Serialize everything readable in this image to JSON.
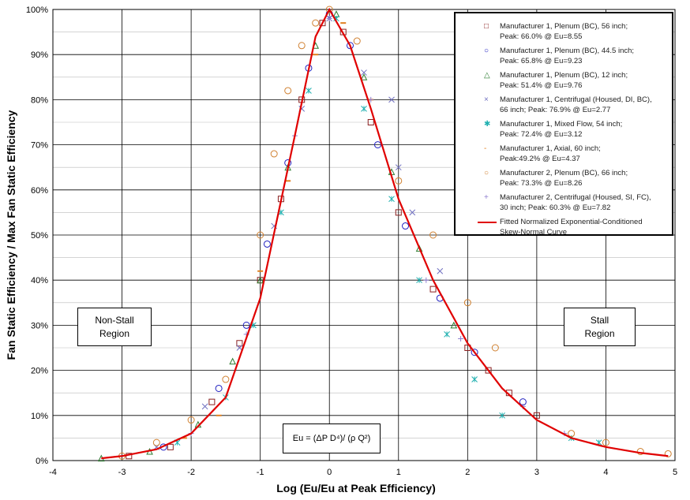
{
  "chart_data": {
    "type": "scatter",
    "xlabel": "Log (Eu/Eu at Peak Efficiency)",
    "ylabel": "Fan Static Efficiency / Max Fan Static Efficiency",
    "xlim": [
      -4,
      5
    ],
    "ylim": [
      0,
      100
    ],
    "xticks": [
      "-4",
      "-3",
      "-2",
      "-1",
      "0",
      "1",
      "2",
      "3",
      "4",
      "5"
    ],
    "yticks": [
      "0%",
      "10%",
      "20%",
      "30%",
      "40%",
      "50%",
      "60%",
      "70%",
      "80%",
      "90%",
      "100%"
    ],
    "grid": true,
    "legend_position": "top-right",
    "annotations": {
      "non_stall": [
        "Non-Stall",
        "Region"
      ],
      "stall": [
        "Stall",
        "Region"
      ],
      "eu_formula": "Eu = (ΔP D⁴)/ (ρ Q²)"
    },
    "series": [
      {
        "name": "Manufacturer 1, Plenum (BC), 56 inch; Peak: 66.0% @ Eu=8.55",
        "marker": "square",
        "color": "#8B2020",
        "x": [
          -2.9,
          -2.3,
          -1.7,
          -1.3,
          -1.0,
          -0.7,
          -0.4,
          -0.1,
          0.2,
          0.6,
          1.0,
          1.5,
          2.0,
          2.3,
          2.6,
          3.0
        ],
        "y": [
          1,
          3,
          13,
          26,
          40,
          58,
          80,
          97,
          95,
          75,
          55,
          38,
          25,
          20,
          15,
          10
        ]
      },
      {
        "name": "Manufacturer 1, Plenum (BC), 44.5 inch; Peak: 65.8% @ Eu=9.23",
        "marker": "circle",
        "color": "#2020C0",
        "x": [
          -2.4,
          -1.6,
          -1.2,
          -0.9,
          -0.6,
          -0.3,
          0.0,
          0.3,
          0.7,
          1.1,
          1.6,
          2.1,
          2.8
        ],
        "y": [
          3,
          16,
          30,
          48,
          66,
          87,
          99,
          92,
          70,
          52,
          36,
          24,
          13
        ]
      },
      {
        "name": "Manufacturer 1, Plenum (BC), 12 inch; Peak: 51.4% @ Eu=9.76",
        "marker": "triangle",
        "color": "#2E7D32",
        "x": [
          -3.3,
          -2.6,
          -1.9,
          -1.4,
          -1.0,
          -0.6,
          -0.2,
          0.1,
          0.5,
          0.9,
          1.3,
          1.8
        ],
        "y": [
          0.5,
          2,
          8,
          22,
          40,
          65,
          92,
          99,
          85,
          64,
          47,
          30
        ]
      },
      {
        "name": "Manufacturer 1, Centrifugal (Housed, DI, BC), 66 inch; Peak: 76.9% @ Eu=2.77",
        "marker": "x",
        "color": "#7070C0",
        "x": [
          -2.5,
          -1.8,
          -1.3,
          -0.8,
          -0.4,
          0.0,
          0.5,
          0.9,
          1.0,
          1.2,
          1.6
        ],
        "y": [
          3,
          12,
          25,
          52,
          78,
          98,
          86,
          80,
          65,
          55,
          42
        ]
      },
      {
        "name": "Manufacturer 1, Mixed Flow, 54 inch; Peak: 72.4% @ Eu=3.12",
        "marker": "asterisk",
        "color": "#20B0B0",
        "x": [
          -2.2,
          -1.5,
          -1.1,
          -0.7,
          -0.3,
          0.1,
          0.5,
          0.9,
          1.3,
          1.7,
          2.1,
          2.5,
          3.5,
          3.9
        ],
        "y": [
          4,
          14,
          30,
          55,
          82,
          98,
          78,
          58,
          40,
          28,
          18,
          10,
          5,
          4
        ]
      },
      {
        "name": "Manufacturer 1, Axial, 60 inch; Peak:49.2% @ Eu=4.37",
        "marker": "dash",
        "color": "#E08020",
        "x": [
          -2.1,
          -1.6,
          -1.0,
          -0.6,
          -0.2,
          0.2,
          0.6
        ],
        "y": [
          5,
          10,
          42,
          62,
          90,
          97,
          80
        ]
      },
      {
        "name": "Manufacturer 2, Plenum (BC), 66 inch; Peak: 73.3% @ Eu=8.26",
        "marker": "circle",
        "color": "#D08030",
        "x": [
          -3.0,
          -2.5,
          -2.0,
          -1.5,
          -1.0,
          -0.8,
          -0.6,
          -0.4,
          -0.2,
          0.0,
          0.4,
          1.0,
          1.5,
          2.0,
          2.4,
          3.5,
          4.0,
          4.5,
          4.9
        ],
        "y": [
          1,
          4,
          9,
          18,
          50,
          68,
          82,
          92,
          97,
          100,
          93,
          62,
          50,
          35,
          25,
          6,
          4,
          2,
          1.5
        ]
      },
      {
        "name": "Manufacturer 2, Centrifugal (Housed, SI, FC), 30 inch; Peak: 60.3% @ Eu=7.82",
        "marker": "plus",
        "color": "#9080D0",
        "x": [
          -2.0,
          -1.2,
          -0.5,
          0.0,
          0.6,
          1.4,
          1.9,
          2.8,
          3.4
        ],
        "y": [
          6,
          28,
          72,
          98,
          80,
          40,
          27,
          12,
          6
        ]
      },
      {
        "name": "Fitted Normalized Exponential-Conditioned Skew-Normal Curve",
        "marker": "line",
        "color": "#E00000",
        "x": [
          -3.3,
          -3.0,
          -2.5,
          -2.0,
          -1.5,
          -1.0,
          -0.5,
          -0.2,
          0.0,
          0.3,
          0.6,
          1.0,
          1.5,
          2.0,
          2.5,
          3.0,
          3.5,
          4.0,
          4.5,
          4.9
        ],
        "y": [
          0.5,
          1,
          2.5,
          6,
          14,
          36,
          72,
          94,
          100,
          92,
          78,
          58,
          40,
          26,
          16,
          9,
          5,
          3,
          1.7,
          1
        ]
      }
    ]
  },
  "legend": {
    "items": [
      {
        "l1": "Manufacturer 1, Plenum (BC), 56 inch;",
        "l2": "Peak: 66.0% @ Eu=8.55",
        "glyph": "□"
      },
      {
        "l1": "Manufacturer 1, Plenum (BC), 44.5 inch;",
        "l2": "Peak: 65.8% @ Eu=9.23",
        "glyph": "○"
      },
      {
        "l1": "Manufacturer 1, Plenum (BC), 12 inch;",
        "l2": "Peak: 51.4% @ Eu=9.76",
        "glyph": "△"
      },
      {
        "l1": "Manufacturer 1, Centrifugal (Housed, DI, BC),",
        "l2": "66 inch; Peak: 76.9% @ Eu=2.77",
        "glyph": "×"
      },
      {
        "l1": "Manufacturer 1, Mixed Flow, 54 inch;",
        "l2": "Peak: 72.4% @ Eu=3.12",
        "glyph": "✱"
      },
      {
        "l1": "Manufacturer 1, Axial, 60 inch;",
        "l2": "Peak:49.2% @ Eu=4.37",
        "glyph": "-"
      },
      {
        "l1": "Manufacturer 2, Plenum (BC), 66 inch;",
        "l2": "Peak: 73.3% @ Eu=8.26",
        "glyph": "○"
      },
      {
        "l1": "Manufacturer 2, Centrifugal (Housed, SI, FC),",
        "l2": "30 inch; Peak: 60.3% @ Eu=7.82",
        "glyph": "+"
      },
      {
        "l1": "Fitted Normalized Exponential-Conditioned",
        "l2": "Skew-Normal Curve",
        "glyph": ""
      }
    ]
  }
}
